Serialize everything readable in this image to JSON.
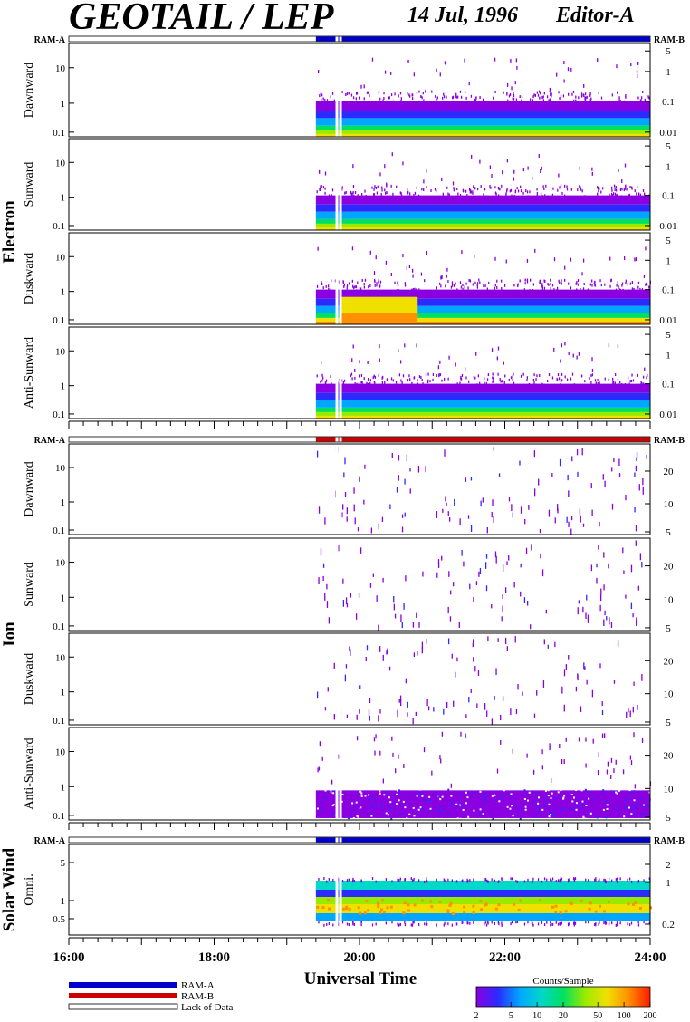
{
  "header": {
    "title": "GEOTAIL / LEP",
    "date": "14 Jul, 1996",
    "editor": "Editor-A"
  },
  "mode_bar_labels": {
    "left": "RAM-A",
    "right": "RAM-B"
  },
  "groups": [
    {
      "name": "Electron",
      "mode": "RAM-A"
    },
    {
      "name": "Ion",
      "mode": "RAM-B"
    },
    {
      "name": "Solar Wind",
      "mode": "RAM-A"
    }
  ],
  "x_axis": {
    "label": "Universal Time",
    "ticks": [
      "16:00",
      "18:00",
      "20:00",
      "22:00",
      "24:00"
    ]
  },
  "legend": {
    "ram_a": "RAM-A",
    "ram_b": "RAM-B",
    "lack": "Lack of Data"
  },
  "colorbar": {
    "title": "Counts/Sample",
    "ticks": [
      "2",
      "5",
      "10",
      "20",
      "50",
      "100",
      "200"
    ]
  },
  "colors": {
    "ram_a": "#0000cc",
    "ram_b": "#cc0000",
    "spectrum": [
      "#8a00e0",
      "#2b2bff",
      "#00a6ff",
      "#00d8c8",
      "#00e060",
      "#9aea00",
      "#f0e000",
      "#ff9000",
      "#ff1a00"
    ]
  },
  "chart_data": [
    {
      "type": "heatmap",
      "group": "Electron",
      "panel": "Dawnward",
      "y_left_ticks": [
        "0.1",
        "1",
        "10"
      ],
      "y_right_ticks": [
        "0.01",
        "0.1",
        "1",
        "5"
      ],
      "y_left_scale": "log",
      "data_start": "19:24",
      "band_levels": [
        0.8,
        4,
        12
      ]
    },
    {
      "type": "heatmap",
      "group": "Electron",
      "panel": "Sunward",
      "y_left_ticks": [
        "0.1",
        "1",
        "10"
      ],
      "y_right_ticks": [
        "0.01",
        "0.1",
        "1",
        "5"
      ],
      "y_left_scale": "log",
      "data_start": "19:24",
      "band_levels": [
        0.8,
        4,
        10
      ]
    },
    {
      "type": "heatmap",
      "group": "Electron",
      "panel": "Duskward",
      "y_left_ticks": [
        "0.1",
        "1",
        "10"
      ],
      "y_right_ticks": [
        "0.01",
        "0.1",
        "1",
        "5"
      ],
      "y_left_scale": "log",
      "data_start": "19:24",
      "band_levels": [
        0.8,
        5,
        30
      ]
    },
    {
      "type": "heatmap",
      "group": "Electron",
      "panel": "Anti-Sunward",
      "y_left_ticks": [
        "0.1",
        "1",
        "10"
      ],
      "y_right_ticks": [
        "0.01",
        "0.1",
        "1",
        "5"
      ],
      "y_left_scale": "log",
      "data_start": "19:24",
      "band_levels": [
        0.8,
        4,
        12
      ]
    },
    {
      "type": "heatmap",
      "group": "Ion",
      "panel": "Dawnward",
      "y_left_ticks": [
        "0.1",
        "1",
        "10"
      ],
      "y_right_ticks": [
        "5",
        "10",
        "20"
      ],
      "y_left_scale": "log",
      "data_start": "19:24",
      "sparse": true
    },
    {
      "type": "heatmap",
      "group": "Ion",
      "panel": "Sunward",
      "y_left_ticks": [
        "0.1",
        "1",
        "10"
      ],
      "y_right_ticks": [
        "5",
        "10",
        "20"
      ],
      "y_left_scale": "log",
      "data_start": "19:24",
      "sparse": true
    },
    {
      "type": "heatmap",
      "group": "Ion",
      "panel": "Duskward",
      "y_left_ticks": [
        "0.1",
        "1",
        "10"
      ],
      "y_right_ticks": [
        "5",
        "10",
        "20"
      ],
      "y_left_scale": "log",
      "data_start": "19:24",
      "sparse": true
    },
    {
      "type": "heatmap",
      "group": "Ion",
      "panel": "Anti-Sunward",
      "y_left_ticks": [
        "0.1",
        "1",
        "10"
      ],
      "y_right_ticks": [
        "5",
        "10",
        "20"
      ],
      "y_left_scale": "log",
      "data_start": "19:24",
      "band_levels": [
        0.8,
        2
      ]
    },
    {
      "type": "heatmap",
      "group": "Solar Wind",
      "panel": "Omni.",
      "y_left_ticks": [
        "0.5",
        "1",
        "5"
      ],
      "y_right_ticks": [
        "0.2",
        "1",
        "2"
      ],
      "y_left_scale": "log",
      "data_start": "19:24",
      "band_levels": [
        3,
        20,
        100
      ]
    }
  ]
}
